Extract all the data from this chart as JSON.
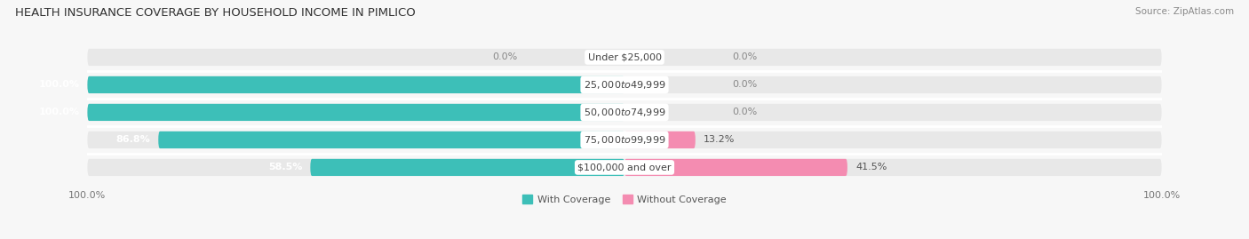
{
  "title": "HEALTH INSURANCE COVERAGE BY HOUSEHOLD INCOME IN PIMLICO",
  "source": "Source: ZipAtlas.com",
  "categories": [
    "Under $25,000",
    "$25,000 to $49,999",
    "$50,000 to $74,999",
    "$75,000 to $99,999",
    "$100,000 and over"
  ],
  "with_coverage": [
    0.0,
    100.0,
    100.0,
    86.8,
    58.5
  ],
  "without_coverage": [
    0.0,
    0.0,
    0.0,
    13.2,
    41.5
  ],
  "color_with": "#3dbfb8",
  "color_without": "#f48cb1",
  "color_bg_bar": "#e8e8e8",
  "color_bg_figure": "#f7f7f7",
  "color_label_dark": "#555555",
  "color_label_white": "#ffffff",
  "legend_labels": [
    "With Coverage",
    "Without Coverage"
  ],
  "title_fontsize": 9.5,
  "label_fontsize": 8,
  "tick_fontsize": 8,
  "source_fontsize": 7.5
}
